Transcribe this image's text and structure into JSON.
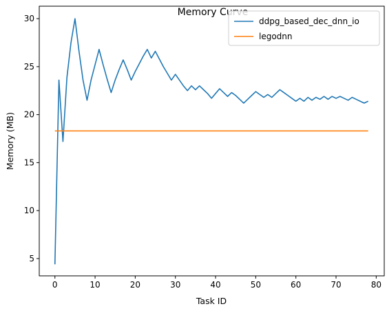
{
  "chart_data": {
    "type": "line",
    "title": "Memory Curve",
    "xlabel": "Task ID",
    "ylabel": "Memory (MB)",
    "xlim": [
      -3.9,
      82
    ],
    "ylim": [
      3.2,
      31.3
    ],
    "xticks": [
      0,
      10,
      20,
      30,
      40,
      50,
      60,
      70,
      80
    ],
    "yticks": [
      5,
      10,
      15,
      20,
      25,
      30
    ],
    "grid": false,
    "legend_position": "top-right",
    "series": [
      {
        "name": "ddpg_based_dec_dnn_io",
        "color": "#1f77b4",
        "x": [
          0,
          1,
          2,
          3,
          4,
          5,
          6,
          7,
          8,
          9,
          10,
          11,
          12,
          13,
          14,
          15,
          16,
          17,
          18,
          19,
          20,
          21,
          22,
          23,
          24,
          25,
          26,
          27,
          28,
          29,
          30,
          31,
          32,
          33,
          34,
          35,
          36,
          37,
          38,
          39,
          40,
          41,
          42,
          43,
          44,
          45,
          46,
          47,
          48,
          49,
          50,
          51,
          52,
          53,
          54,
          55,
          56,
          57,
          58,
          59,
          60,
          61,
          62,
          63,
          64,
          65,
          66,
          67,
          68,
          69,
          70,
          71,
          72,
          73,
          74,
          75,
          76,
          77,
          78
        ],
        "values": [
          4.4,
          23.6,
          17.2,
          23.9,
          27.5,
          30.0,
          26.6,
          23.6,
          21.5,
          23.6,
          25.2,
          26.8,
          25.2,
          23.7,
          22.3,
          23.6,
          24.7,
          25.7,
          24.7,
          23.6,
          24.5,
          25.3,
          26.1,
          26.8,
          25.9,
          26.6,
          25.8,
          25.0,
          24.3,
          23.6,
          24.2,
          23.6,
          23.0,
          22.5,
          23.0,
          22.6,
          23.0,
          22.6,
          22.2,
          21.7,
          22.2,
          22.7,
          22.3,
          21.9,
          22.3,
          22.0,
          21.6,
          21.2,
          21.6,
          22.0,
          22.4,
          22.1,
          21.8,
          22.1,
          21.8,
          22.2,
          22.6,
          22.3,
          22.0,
          21.7,
          21.4,
          21.7,
          21.4,
          21.8,
          21.5,
          21.8,
          21.6,
          21.9,
          21.6,
          21.9,
          21.7,
          21.9,
          21.7,
          21.5,
          21.8,
          21.6,
          21.4,
          21.2,
          21.4
        ]
      },
      {
        "name": "legodnn",
        "color": "#ff7f0e",
        "x": [
          0,
          78
        ],
        "values": [
          18.3,
          18.3
        ]
      }
    ]
  }
}
